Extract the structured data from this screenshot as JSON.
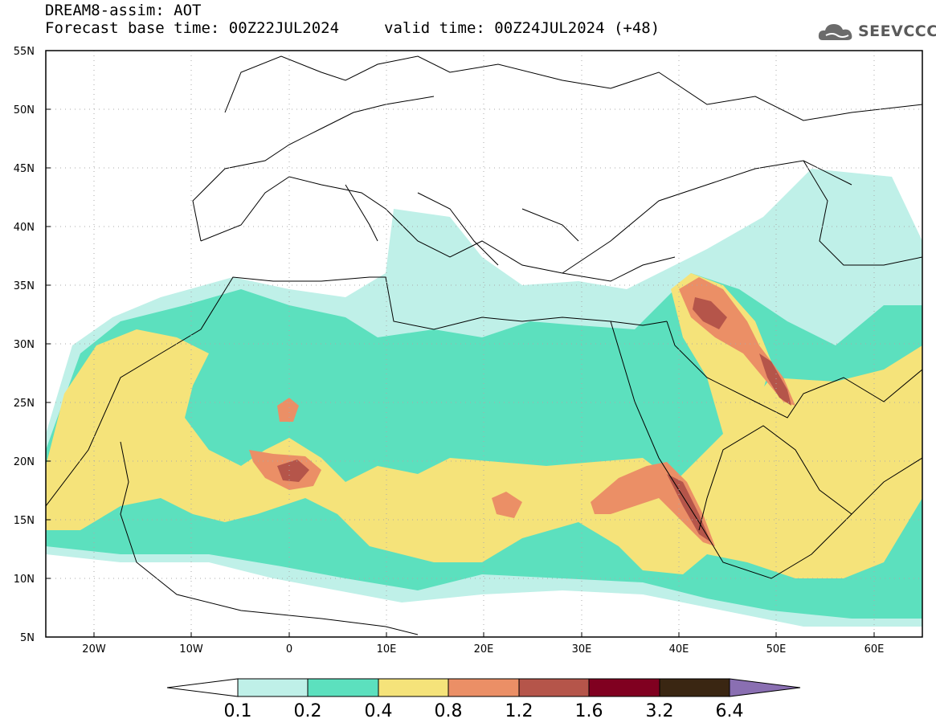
{
  "header": {
    "model_line": "DREAM8-assim: AOT",
    "base_time": "Forecast base time: 00Z22JUL2024",
    "valid_time": "valid time: 00Z24JUL2024 (+48)"
  },
  "logo": {
    "text": "SEEVCCC"
  },
  "map": {
    "lat_labels": [
      "55N",
      "50N",
      "45N",
      "40N",
      "35N",
      "30N",
      "25N",
      "20N",
      "15N",
      "10N",
      "5N"
    ],
    "lon_labels": [
      "20W",
      "10W",
      "0",
      "10E",
      "20E",
      "30E",
      "40E",
      "50E",
      "60E"
    ],
    "lat_range": [
      5,
      55
    ],
    "lon_range": [
      -25,
      65
    ],
    "grid": "dotted"
  },
  "colorbar": {
    "labels": [
      "0.1",
      "0.2",
      "0.4",
      "0.8",
      "1.2",
      "1.6",
      "3.2",
      "6.4"
    ],
    "colors": [
      "#ffffff",
      "#bff0e8",
      "#5ce0be",
      "#f5e37a",
      "#eb8f66",
      "#b5554a",
      "#800020",
      "#3a2612",
      "#8a6fb2"
    ]
  },
  "colors": {
    "c01": "#bff0e8",
    "c02": "#5ce0be",
    "c04": "#f5e37a",
    "c08": "#eb8f66",
    "c12": "#b5554a",
    "c16": "#800020",
    "c32": "#3a2612"
  }
}
